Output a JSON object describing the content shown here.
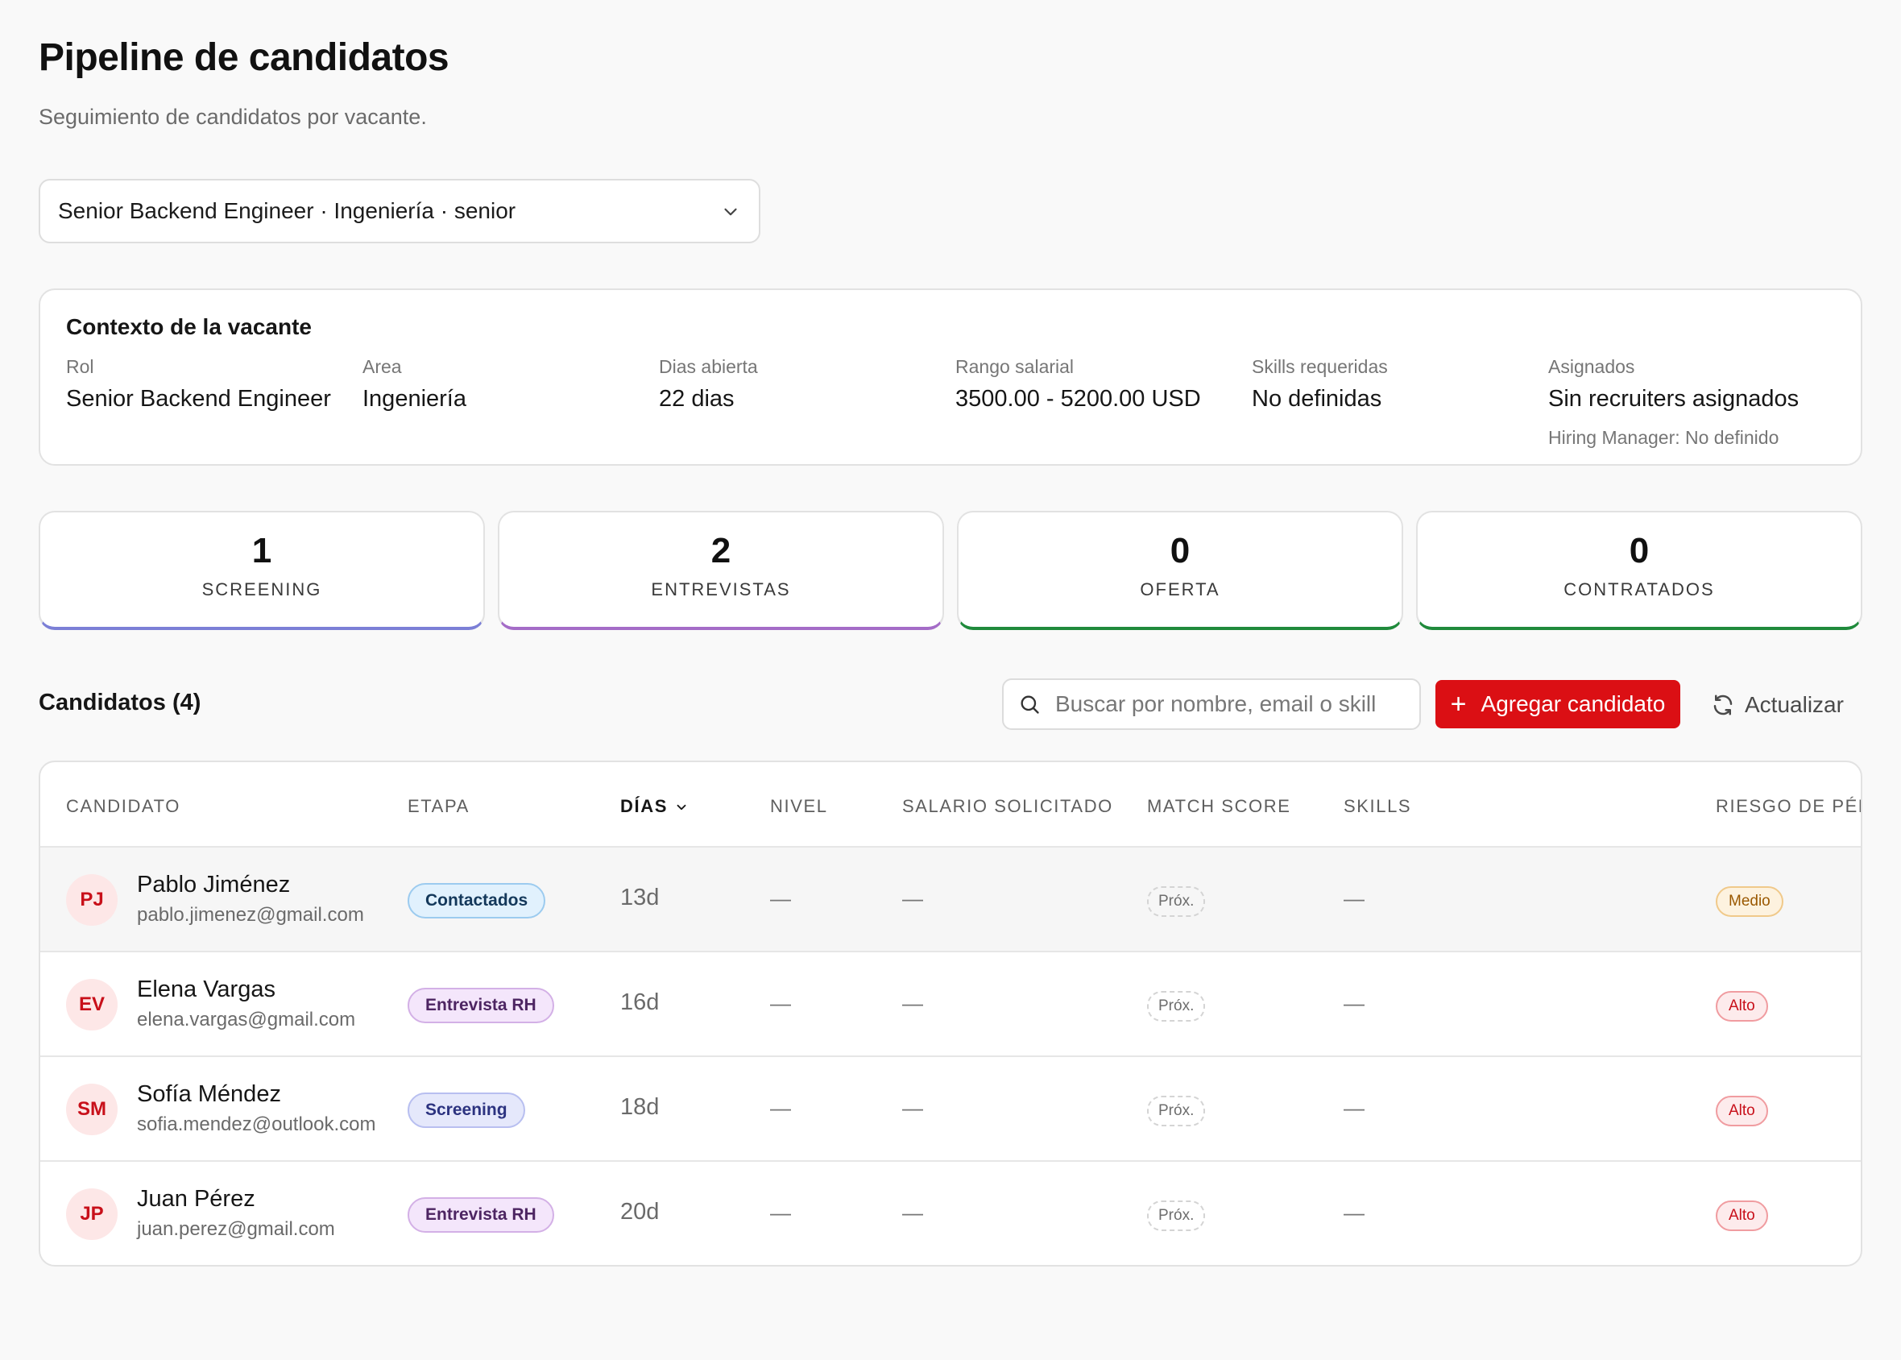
{
  "page": {
    "title": "Pipeline de candidatos",
    "subtitle": "Seguimiento de candidatos por vacante."
  },
  "vacancy_select": {
    "value": "Senior Backend Engineer · Ingeniería · senior"
  },
  "context": {
    "title": "Contexto de la vacante",
    "fields": [
      {
        "label": "Rol",
        "value": "Senior Backend Engineer"
      },
      {
        "label": "Area",
        "value": "Ingeniería"
      },
      {
        "label": "Dias abierta",
        "value": "22 dias"
      },
      {
        "label": "Rango salarial",
        "value": "3500.00 - 5200.00 USD"
      },
      {
        "label": "Skills requeridas",
        "value": "No definidas"
      },
      {
        "label": "Asignados",
        "value": "Sin recruiters asignados",
        "sub": "Hiring Manager: No definido"
      }
    ]
  },
  "stats": [
    {
      "value": "1",
      "label": "SCREENING",
      "accent": "#7b7fd6"
    },
    {
      "value": "2",
      "label": "ENTREVISTAS",
      "accent": "#a46cc7"
    },
    {
      "value": "0",
      "label": "OFERTA",
      "accent": "#1f8a3b"
    },
    {
      "value": "0",
      "label": "CONTRATADOS",
      "accent": "#1f8a3b"
    }
  ],
  "candidates_section": {
    "title": "Candidatos (4)",
    "search_placeholder": "Buscar por nombre, email o skill",
    "add_label": "Agregar candidato",
    "refresh_label": "Actualizar"
  },
  "table": {
    "columns": [
      "CANDIDATO",
      "ETAPA",
      "DÍAS",
      "NIVEL",
      "SALARIO SOLICITADO",
      "MATCH SCORE",
      "SKILLS",
      "RIESGO DE PÉRI"
    ],
    "sorted_column": "DÍAS",
    "rows": [
      {
        "initials": "PJ",
        "name": "Pablo Jiménez",
        "email": "pablo.jimenez@gmail.com",
        "stage": "Contactados",
        "stage_color": "blue",
        "days": "13d",
        "level": "—",
        "salary": "—",
        "match": "Próx.",
        "skills": "—",
        "risk": "Medio",
        "risk_level": "medium"
      },
      {
        "initials": "EV",
        "name": "Elena Vargas",
        "email": "elena.vargas@gmail.com",
        "stage": "Entrevista RH",
        "stage_color": "purple",
        "days": "16d",
        "level": "—",
        "salary": "—",
        "match": "Próx.",
        "skills": "—",
        "risk": "Alto",
        "risk_level": "high"
      },
      {
        "initials": "SM",
        "name": "Sofía Méndez",
        "email": "sofia.mendez@outlook.com",
        "stage": "Screening",
        "stage_color": "indigo",
        "days": "18d",
        "level": "—",
        "salary": "—",
        "match": "Próx.",
        "skills": "—",
        "risk": "Alto",
        "risk_level": "high"
      },
      {
        "initials": "JP",
        "name": "Juan Pérez",
        "email": "juan.perez@gmail.com",
        "stage": "Entrevista RH",
        "stage_color": "purple",
        "days": "20d",
        "level": "—",
        "salary": "—",
        "match": "Próx.",
        "skills": "—",
        "risk": "Alto",
        "risk_level": "high"
      }
    ]
  }
}
